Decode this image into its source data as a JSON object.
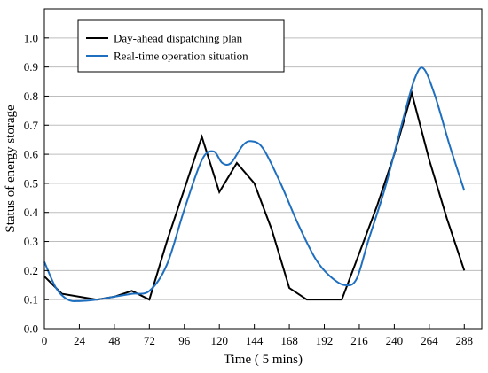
{
  "chart_data": {
    "type": "line",
    "title": "",
    "xlabel": "Time ( 5 mins)",
    "ylabel": "Status of energy storage",
    "xlim": [
      0,
      300
    ],
    "ylim": [
      0,
      1.1
    ],
    "x_ticks": [
      0,
      24,
      48,
      72,
      96,
      120,
      144,
      168,
      192,
      216,
      240,
      264,
      288
    ],
    "y_ticks": [
      0.0,
      0.1,
      0.2,
      0.3,
      0.4,
      0.5,
      0.6,
      0.7,
      0.8,
      0.9,
      1.0
    ],
    "y_tick_labels": [
      "0.0",
      "0.1",
      "0.2",
      "0.3",
      "0.4",
      "0.5",
      "0.6",
      "0.7",
      "0.8",
      "0.9",
      "1.0"
    ],
    "grid": "horizontal",
    "legend_position": "top-left",
    "series": [
      {
        "name": "Day-ahead dispatching plan",
        "color": "#000000",
        "smooth": false,
        "points": [
          [
            0,
            0.18
          ],
          [
            12,
            0.12
          ],
          [
            36,
            0.1
          ],
          [
            48,
            0.11
          ],
          [
            60,
            0.13
          ],
          [
            72,
            0.1
          ],
          [
            84,
            0.3
          ],
          [
            108,
            0.66
          ],
          [
            120,
            0.47
          ],
          [
            132,
            0.57
          ],
          [
            144,
            0.5
          ],
          [
            156,
            0.34
          ],
          [
            168,
            0.14
          ],
          [
            180,
            0.1
          ],
          [
            192,
            0.1
          ],
          [
            204,
            0.1
          ],
          [
            228,
            0.42
          ],
          [
            240,
            0.6
          ],
          [
            252,
            0.81
          ],
          [
            264,
            0.58
          ],
          [
            276,
            0.38
          ],
          [
            288,
            0.2
          ]
        ]
      },
      {
        "name": "Real-time operation situation",
        "color": "#1f6fc0",
        "smooth": true,
        "points": [
          [
            0,
            0.23
          ],
          [
            8,
            0.14
          ],
          [
            16,
            0.1
          ],
          [
            24,
            0.095
          ],
          [
            36,
            0.1
          ],
          [
            48,
            0.11
          ],
          [
            60,
            0.12
          ],
          [
            72,
            0.13
          ],
          [
            84,
            0.22
          ],
          [
            96,
            0.41
          ],
          [
            108,
            0.58
          ],
          [
            116,
            0.61
          ],
          [
            122,
            0.57
          ],
          [
            128,
            0.57
          ],
          [
            136,
            0.63
          ],
          [
            142,
            0.645
          ],
          [
            150,
            0.62
          ],
          [
            162,
            0.5
          ],
          [
            174,
            0.36
          ],
          [
            186,
            0.24
          ],
          [
            196,
            0.18
          ],
          [
            206,
            0.15
          ],
          [
            214,
            0.17
          ],
          [
            222,
            0.3
          ],
          [
            234,
            0.49
          ],
          [
            246,
            0.72
          ],
          [
            254,
            0.86
          ],
          [
            260,
            0.895
          ],
          [
            268,
            0.8
          ],
          [
            278,
            0.63
          ],
          [
            288,
            0.475
          ]
        ]
      }
    ]
  }
}
